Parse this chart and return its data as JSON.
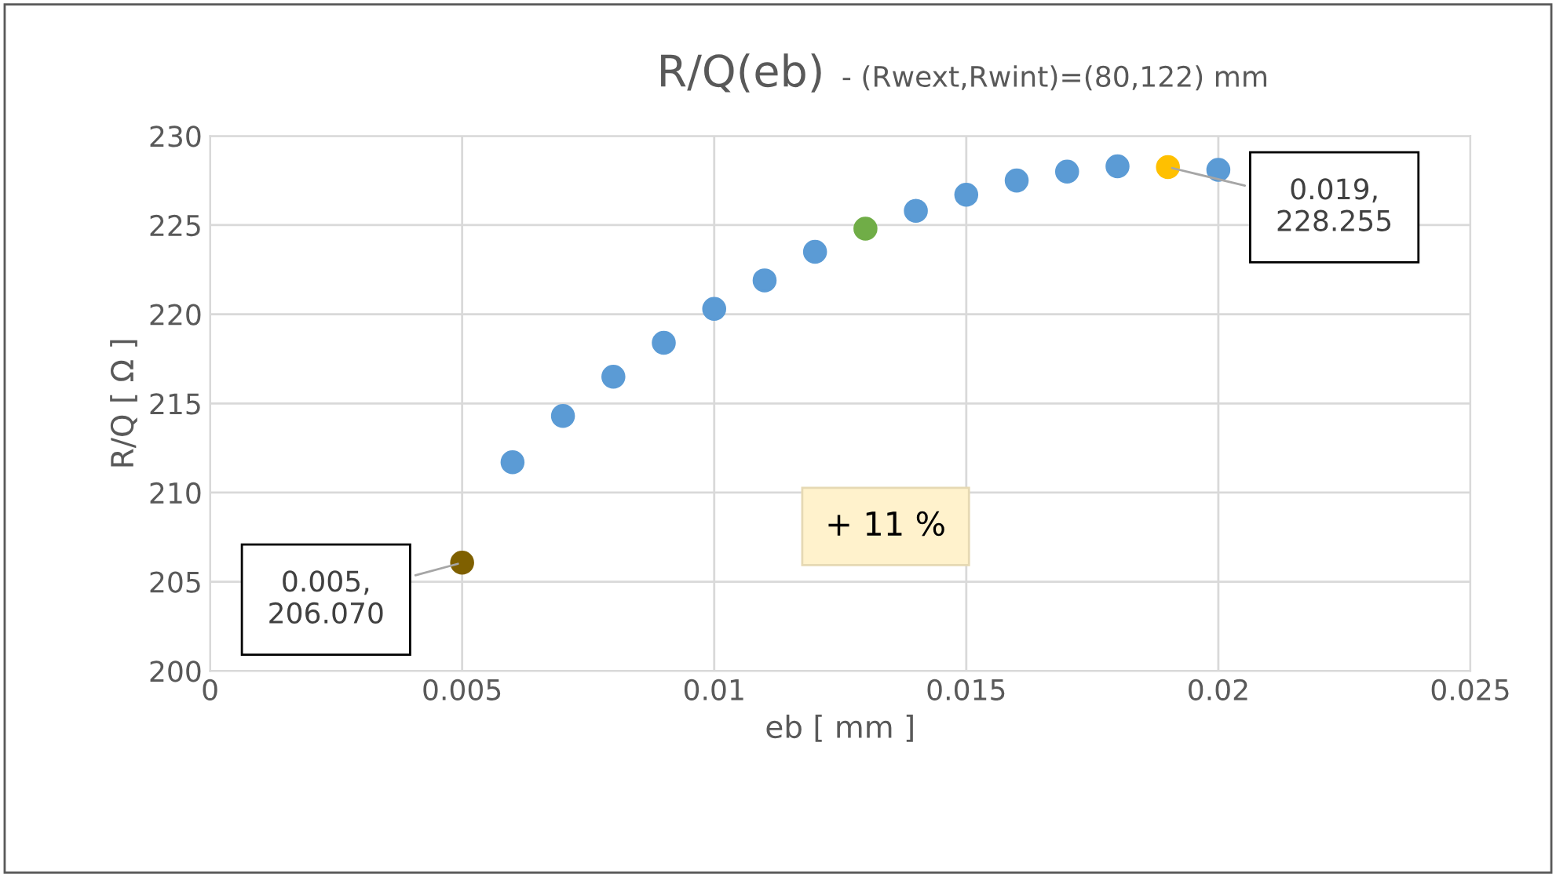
{
  "chart_data": {
    "type": "scatter",
    "title": "R/Q(eb)",
    "subtitle": "- (Rwext,Rwint)=(80,122) mm",
    "xlabel": "eb [ mm ]",
    "ylabel": "R/Q [ Ω ]",
    "x": [
      0.005,
      0.006,
      0.007,
      0.008,
      0.009,
      0.01,
      0.011,
      0.012,
      0.013,
      0.014,
      0.015,
      0.016,
      0.017,
      0.018,
      0.019,
      0.02
    ],
    "values": [
      206.07,
      211.7,
      214.3,
      216.5,
      218.4,
      220.3,
      221.9,
      223.5,
      224.8,
      225.8,
      226.7,
      227.5,
      228.0,
      228.3,
      228.255,
      228.1
    ],
    "colors": [
      "#7f6000",
      "#5b9bd5",
      "#5b9bd5",
      "#5b9bd5",
      "#5b9bd5",
      "#5b9bd5",
      "#5b9bd5",
      "#5b9bd5",
      "#70ad47",
      "#5b9bd5",
      "#5b9bd5",
      "#5b9bd5",
      "#5b9bd5",
      "#5b9bd5",
      "#ffc000",
      "#5b9bd5"
    ],
    "xlim": [
      0,
      0.025
    ],
    "xticks": [
      0,
      0.005,
      0.01,
      0.015,
      0.02,
      0.025
    ],
    "ylim": [
      200,
      230
    ],
    "yticks": [
      200,
      205,
      210,
      215,
      220,
      225,
      230
    ],
    "grid": true,
    "marker": "circle",
    "annotations": [
      {
        "text": "0.005,\n206.070",
        "x": 0.005,
        "y": 206.07
      },
      {
        "text": "0.019,\n228.255",
        "x": 0.019,
        "y": 228.255
      },
      "+ 11 %"
    ]
  }
}
